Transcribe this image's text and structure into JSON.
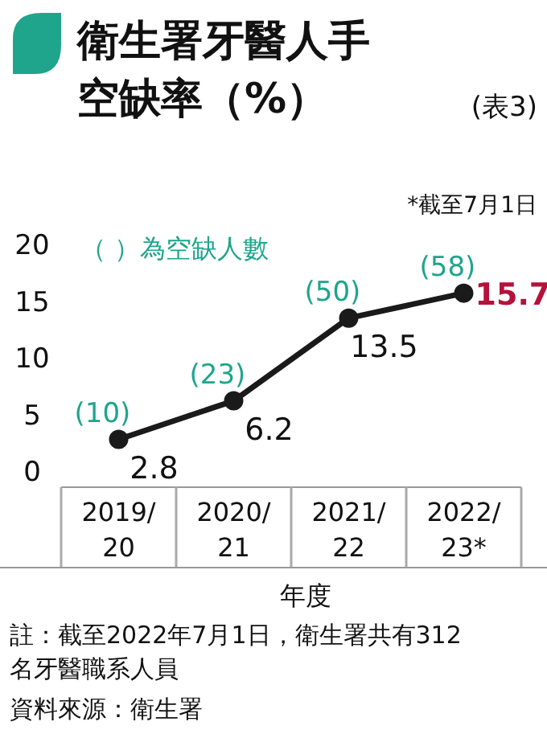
{
  "chart_data": {
    "type": "line",
    "title": "衛生署牙醫人手空缺率（%）",
    "subtitle": "(表3)",
    "xlabel": "年度",
    "categories": [
      "2019/\n20",
      "2020/\n21",
      "2021/\n22",
      "2022/\n23*"
    ],
    "series": [
      {
        "color": "#1a1a1a",
        "values": [
          2.8,
          6.2,
          13.5,
          15.7
        ]
      }
    ],
    "ylim": [
      0,
      20
    ],
    "yticks": [
      0,
      5,
      10,
      15,
      20
    ],
    "grid": false,
    "marker": "circle",
    "line_style": "solid",
    "data_labels": true,
    "annotations": [
      "*截至7月1日",
      "（ ）為空缺人數",
      "註：截至2022年7月1日，衛生署共有312名牙醫職系人員",
      "資料來源：衛生署",
      {
        "text": "(10)",
        "x": "2019/\n20",
        "y": 2.8
      },
      {
        "text": "(23)",
        "x": "2020/\n21",
        "y": 6.2
      },
      {
        "text": "(50)",
        "x": "2021/\n22",
        "y": 13.5
      },
      {
        "text": "(58)",
        "x": "2022/\n23*",
        "y": 15.7
      }
    ]
  }
}
